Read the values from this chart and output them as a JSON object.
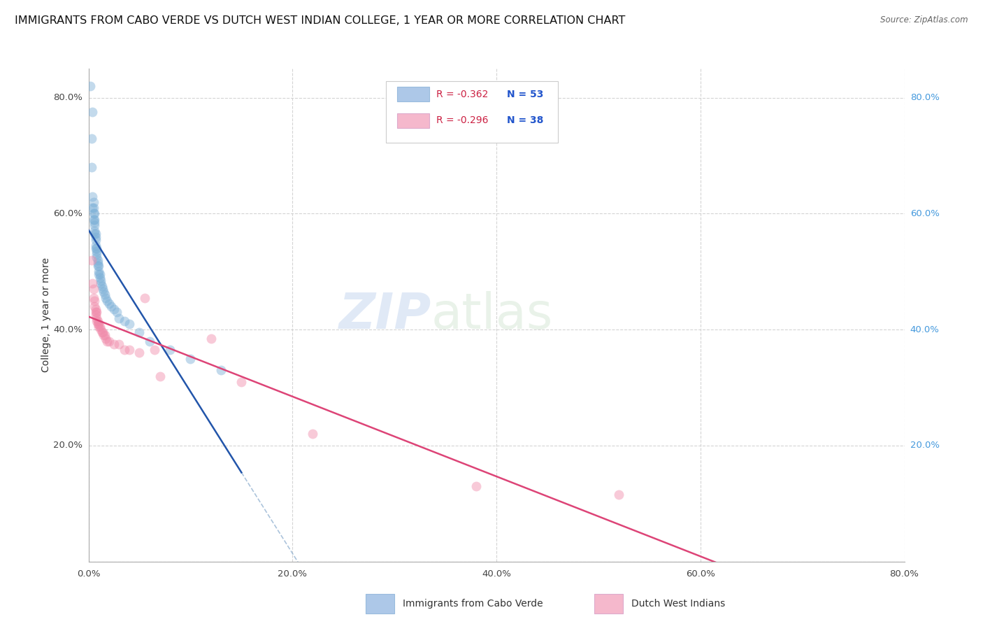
{
  "title": "IMMIGRANTS FROM CABO VERDE VS DUTCH WEST INDIAN COLLEGE, 1 YEAR OR MORE CORRELATION CHART",
  "source": "Source: ZipAtlas.com",
  "ylabel": "College, 1 year or more",
  "xmin": 0.0,
  "xmax": 0.8,
  "ymin": 0.0,
  "ymax": 0.85,
  "xtick_vals": [
    0.0,
    0.2,
    0.4,
    0.6,
    0.8
  ],
  "xtick_labels": [
    "0.0%",
    "20.0%",
    "40.0%",
    "60.0%",
    "80.0%"
  ],
  "ytick_vals": [
    0.0,
    0.2,
    0.4,
    0.6,
    0.8
  ],
  "ytick_labels_right": [
    "80.0%",
    "60.0%",
    "40.0%",
    "20.0%"
  ],
  "ytick_vals_right": [
    0.8,
    0.6,
    0.4,
    0.2
  ],
  "legend_r1": "R = -0.362",
  "legend_n1": "N = 53",
  "legend_r2": "R = -0.296",
  "legend_n2": "N = 38",
  "legend_color1": "#adc8e8",
  "legend_color2": "#f5b8cc",
  "scatter_color1": "#7aaed6",
  "scatter_color2": "#f08aaa",
  "line_color1": "#2255aa",
  "line_color2": "#dd4477",
  "dashed_color": "#88aacc",
  "watermark_zip": "ZIP",
  "watermark_atlas": "atlas",
  "background_color": "#ffffff",
  "grid_color": "#d0d0d0",
  "title_fontsize": 11.5,
  "axis_fontsize": 10,
  "tick_fontsize": 9.5,
  "marker_size": 100,
  "marker_alpha": 0.45,
  "line_width": 1.8,
  "cabo_verde_x": [
    0.002,
    0.003,
    0.003,
    0.004,
    0.004,
    0.004,
    0.005,
    0.005,
    0.005,
    0.005,
    0.006,
    0.006,
    0.006,
    0.006,
    0.006,
    0.006,
    0.007,
    0.007,
    0.007,
    0.007,
    0.007,
    0.008,
    0.008,
    0.008,
    0.008,
    0.009,
    0.009,
    0.009,
    0.01,
    0.01,
    0.01,
    0.011,
    0.011,
    0.012,
    0.012,
    0.013,
    0.014,
    0.015,
    0.016,
    0.017,
    0.018,
    0.02,
    0.022,
    0.025,
    0.028,
    0.03,
    0.035,
    0.04,
    0.05,
    0.06,
    0.08,
    0.1,
    0.13
  ],
  "cabo_verde_y": [
    0.82,
    0.73,
    0.68,
    0.775,
    0.63,
    0.61,
    0.62,
    0.61,
    0.6,
    0.59,
    0.6,
    0.59,
    0.585,
    0.58,
    0.57,
    0.565,
    0.565,
    0.56,
    0.555,
    0.545,
    0.54,
    0.54,
    0.535,
    0.53,
    0.525,
    0.52,
    0.515,
    0.51,
    0.51,
    0.5,
    0.495,
    0.495,
    0.49,
    0.485,
    0.48,
    0.475,
    0.47,
    0.465,
    0.46,
    0.455,
    0.45,
    0.445,
    0.44,
    0.435,
    0.43,
    0.42,
    0.415,
    0.41,
    0.395,
    0.38,
    0.365,
    0.35,
    0.33
  ],
  "dutch_x": [
    0.003,
    0.004,
    0.005,
    0.005,
    0.006,
    0.006,
    0.007,
    0.007,
    0.007,
    0.008,
    0.008,
    0.008,
    0.009,
    0.009,
    0.01,
    0.01,
    0.011,
    0.012,
    0.013,
    0.014,
    0.015,
    0.016,
    0.017,
    0.018,
    0.02,
    0.025,
    0.03,
    0.035,
    0.04,
    0.05,
    0.055,
    0.065,
    0.07,
    0.12,
    0.15,
    0.22,
    0.38,
    0.52
  ],
  "dutch_y": [
    0.52,
    0.48,
    0.47,
    0.455,
    0.45,
    0.44,
    0.435,
    0.43,
    0.425,
    0.43,
    0.42,
    0.415,
    0.415,
    0.41,
    0.41,
    0.405,
    0.405,
    0.4,
    0.395,
    0.395,
    0.39,
    0.39,
    0.385,
    0.38,
    0.38,
    0.375,
    0.375,
    0.365,
    0.365,
    0.36,
    0.455,
    0.365,
    0.32,
    0.385,
    0.31,
    0.22,
    0.13,
    0.115
  ]
}
